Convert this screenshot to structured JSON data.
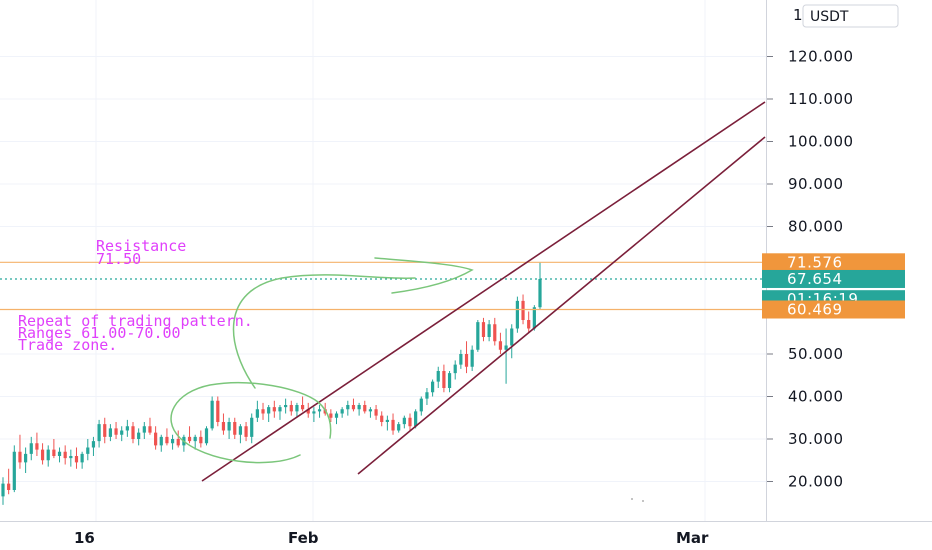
{
  "chart_data": {
    "type": "candlestick",
    "currency_label": "USDT",
    "y_axis": {
      "ticks": [
        "120.000",
        "110.000",
        "100.000",
        "90.000",
        "80.000",
        "50.000",
        "40.000",
        "30.000",
        "20.000"
      ],
      "partial_top_tick": "1",
      "ylim": [
        13,
        128
      ]
    },
    "x_axis": {
      "ticks": [
        "16",
        "Feb",
        "Mar"
      ]
    },
    "price_tags": [
      {
        "label": "71.576",
        "value": 71.576,
        "color": "#f0963c"
      },
      {
        "label": "67.654",
        "value": 67.654,
        "color": "#26a69a"
      },
      {
        "label": "01:16:19",
        "value": 62.9,
        "color": "#26a69a"
      },
      {
        "label": "60.469",
        "value": 60.469,
        "color": "#f0963c"
      }
    ],
    "horizontal_lines": [
      {
        "value": 71.576,
        "color": "#f5b26b",
        "style": "solid"
      },
      {
        "value": 67.654,
        "color": "#26a69a",
        "style": "dotted"
      },
      {
        "value": 60.469,
        "color": "#f5b26b",
        "style": "solid"
      }
    ],
    "annotations": {
      "resistance": [
        "Resistance",
        "71.50"
      ],
      "pattern": [
        "Repeat of trading pattern.",
        "Ranges 61.00-70.00",
        "Trade zone."
      ]
    },
    "up_color": "#26a69a",
    "down_color": "#ef5350",
    "channel_color": "#7b1f3a",
    "annotation_color": "#e040fb",
    "drawing_color": "#7bc67b",
    "candles": [
      [
        16.5,
        21.0,
        14.5,
        19.5
      ],
      [
        19.5,
        23.0,
        17.0,
        18.0
      ],
      [
        18.0,
        28.5,
        17.5,
        27.0
      ],
      [
        27.0,
        31.0,
        23.0,
        24.5
      ],
      [
        24.5,
        28.0,
        22.0,
        26.5
      ],
      [
        26.5,
        30.5,
        25.0,
        29.0
      ],
      [
        29.0,
        31.5,
        26.0,
        27.5
      ],
      [
        27.5,
        29.0,
        24.0,
        25.0
      ],
      [
        25.0,
        28.5,
        23.5,
        27.5
      ],
      [
        27.5,
        30.0,
        25.5,
        26.0
      ],
      [
        26.0,
        28.0,
        24.5,
        27.0
      ],
      [
        27.0,
        28.5,
        24.0,
        25.5
      ],
      [
        25.5,
        27.5,
        23.5,
        26.0
      ],
      [
        26.0,
        28.0,
        23.0,
        24.5
      ],
      [
        24.5,
        27.0,
        23.0,
        26.5
      ],
      [
        26.5,
        30.0,
        25.0,
        28.0
      ],
      [
        28.0,
        30.5,
        26.0,
        29.5
      ],
      [
        29.5,
        34.5,
        28.0,
        33.5
      ],
      [
        33.5,
        35.0,
        29.0,
        30.5
      ],
      [
        30.5,
        33.5,
        29.5,
        32.5
      ],
      [
        32.5,
        34.0,
        30.0,
        31.0
      ],
      [
        31.0,
        33.0,
        29.5,
        32.0
      ],
      [
        32.0,
        34.5,
        30.5,
        33.0
      ],
      [
        33.0,
        34.0,
        29.0,
        30.0
      ],
      [
        30.0,
        32.5,
        28.5,
        31.5
      ],
      [
        31.5,
        34.0,
        30.0,
        33.0
      ],
      [
        33.0,
        35.0,
        31.0,
        31.5
      ],
      [
        31.5,
        33.0,
        27.5,
        28.5
      ],
      [
        28.5,
        31.0,
        27.0,
        30.5
      ],
      [
        30.5,
        32.5,
        28.5,
        29.0
      ],
      [
        29.0,
        31.0,
        27.5,
        30.0
      ],
      [
        30.0,
        32.0,
        28.0,
        28.5
      ],
      [
        28.5,
        31.0,
        27.0,
        30.5
      ],
      [
        30.5,
        33.0,
        29.0,
        29.5
      ],
      [
        29.5,
        31.0,
        27.5,
        30.5
      ],
      [
        30.5,
        32.0,
        28.0,
        29.0
      ],
      [
        29.0,
        33.0,
        28.5,
        32.5
      ],
      [
        32.5,
        40.0,
        32.0,
        39.0
      ],
      [
        39.0,
        40.0,
        33.0,
        34.0
      ],
      [
        34.0,
        36.0,
        31.0,
        32.0
      ],
      [
        32.0,
        35.0,
        30.0,
        34.0
      ],
      [
        34.0,
        35.0,
        30.0,
        31.0
      ],
      [
        31.0,
        33.5,
        29.0,
        33.0
      ],
      [
        33.0,
        34.0,
        29.5,
        30.5
      ],
      [
        30.5,
        36.0,
        29.0,
        35.0
      ],
      [
        35.0,
        39.0,
        34.0,
        37.0
      ],
      [
        37.0,
        38.5,
        34.5,
        36.0
      ],
      [
        36.0,
        38.0,
        34.0,
        37.5
      ],
      [
        37.5,
        39.0,
        35.0,
        36.5
      ],
      [
        36.5,
        38.0,
        34.5,
        37.5
      ],
      [
        37.5,
        39.5,
        36.0,
        38.0
      ],
      [
        38.0,
        39.0,
        35.5,
        36.5
      ],
      [
        36.5,
        38.5,
        35.0,
        38.0
      ],
      [
        38.0,
        40.0,
        36.5,
        37.0
      ],
      [
        37.0,
        38.5,
        35.0,
        36.0
      ],
      [
        36.0,
        37.5,
        34.0,
        36.5
      ],
      [
        36.5,
        38.0,
        35.0,
        37.0
      ],
      [
        37.0,
        38.5,
        35.5,
        36.0
      ],
      [
        36.0,
        37.0,
        34.0,
        35.0
      ],
      [
        35.0,
        36.5,
        33.5,
        36.0
      ],
      [
        36.0,
        37.5,
        35.0,
        37.0
      ],
      [
        37.0,
        39.0,
        35.5,
        38.0
      ],
      [
        38.0,
        39.5,
        36.5,
        37.0
      ],
      [
        37.0,
        38.5,
        35.5,
        38.0
      ],
      [
        38.0,
        39.0,
        36.0,
        36.5
      ],
      [
        36.5,
        37.5,
        35.0,
        37.0
      ],
      [
        37.0,
        38.0,
        34.5,
        35.5
      ],
      [
        35.5,
        36.5,
        33.0,
        34.0
      ],
      [
        34.0,
        35.5,
        32.0,
        34.5
      ],
      [
        34.5,
        36.0,
        31.0,
        32.0
      ],
      [
        32.0,
        34.0,
        31.5,
        33.5
      ],
      [
        33.5,
        35.5,
        32.5,
        35.0
      ],
      [
        35.0,
        36.0,
        32.0,
        33.0
      ],
      [
        33.0,
        37.0,
        32.5,
        36.5
      ],
      [
        36.5,
        40.0,
        35.5,
        39.5
      ],
      [
        39.5,
        42.0,
        38.0,
        41.0
      ],
      [
        41.0,
        44.0,
        40.0,
        43.5
      ],
      [
        43.5,
        47.0,
        42.0,
        46.0
      ],
      [
        46.0,
        47.5,
        41.0,
        42.0
      ],
      [
        42.0,
        46.0,
        41.0,
        45.5
      ],
      [
        45.5,
        48.5,
        44.0,
        47.5
      ],
      [
        47.5,
        51.0,
        46.5,
        50.0
      ],
      [
        50.0,
        53.0,
        45.5,
        47.0
      ],
      [
        47.0,
        52.0,
        46.0,
        51.0
      ],
      [
        51.0,
        58.0,
        50.5,
        57.5
      ],
      [
        57.5,
        58.5,
        53.0,
        54.0
      ],
      [
        54.0,
        58.0,
        53.0,
        57.0
      ],
      [
        57.0,
        58.5,
        52.0,
        53.0
      ],
      [
        53.0,
        55.0,
        50.0,
        51.0
      ],
      [
        51.0,
        56.0,
        43.0,
        52.0
      ],
      [
        52.0,
        57.0,
        49.0,
        56.0
      ],
      [
        56.0,
        63.5,
        55.0,
        62.5
      ],
      [
        62.5,
        64.0,
        57.0,
        58.0
      ],
      [
        58.0,
        60.0,
        55.0,
        56.0
      ],
      [
        56.0,
        61.5,
        55.5,
        61.0
      ],
      [
        61.0,
        71.576,
        60.5,
        67.654
      ]
    ]
  }
}
